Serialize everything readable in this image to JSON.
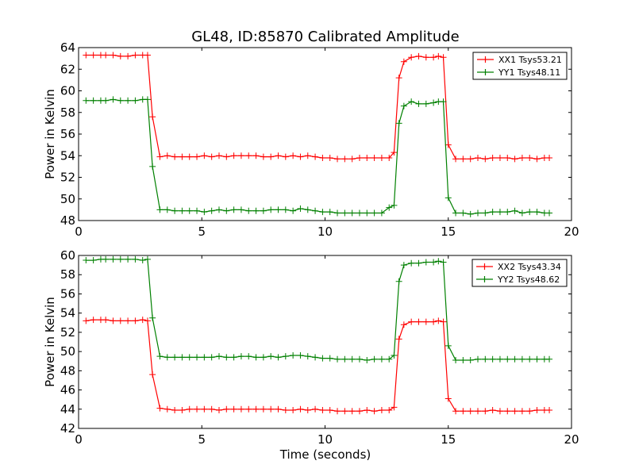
{
  "figure": {
    "title": "GL48, ID:85870 Calibrated Amplitude",
    "xlabel": "Time (seconds)"
  },
  "chart_data": [
    {
      "type": "line",
      "ylabel": "Power in Kelvin",
      "xlabel": "",
      "xlim": [
        0,
        20
      ],
      "ylim": [
        48,
        64
      ],
      "xticks": [
        0,
        5,
        10,
        15,
        20
      ],
      "yticks": [
        48,
        50,
        52,
        54,
        56,
        58,
        60,
        62,
        64
      ],
      "grid": false,
      "legend_position": "top-right",
      "x": [
        0.3,
        0.6,
        0.9,
        1.1,
        1.4,
        1.7,
        2.0,
        2.3,
        2.6,
        2.8,
        3.0,
        3.3,
        3.6,
        3.9,
        4.2,
        4.5,
        4.8,
        5.1,
        5.4,
        5.7,
        6.0,
        6.3,
        6.6,
        6.9,
        7.2,
        7.5,
        7.8,
        8.1,
        8.4,
        8.7,
        9.0,
        9.3,
        9.6,
        9.9,
        10.2,
        10.5,
        10.8,
        11.1,
        11.4,
        11.7,
        12.0,
        12.3,
        12.6,
        12.8,
        13.0,
        13.2,
        13.5,
        13.8,
        14.1,
        14.4,
        14.6,
        14.8,
        15.0,
        15.3,
        15.6,
        15.9,
        16.2,
        16.5,
        16.8,
        17.1,
        17.4,
        17.7,
        18.0,
        18.3,
        18.6,
        18.9,
        19.1
      ],
      "series": [
        {
          "name": "XX1 Tsys53.21",
          "color": "#ff0000",
          "values": [
            63.3,
            63.3,
            63.3,
            63.3,
            63.3,
            63.2,
            63.2,
            63.3,
            63.3,
            63.3,
            57.6,
            53.9,
            54.0,
            53.9,
            53.9,
            53.9,
            53.9,
            54.0,
            53.9,
            54.0,
            53.9,
            54.0,
            54.0,
            54.0,
            54.0,
            53.9,
            53.9,
            54.0,
            53.9,
            54.0,
            53.9,
            54.0,
            53.9,
            53.8,
            53.8,
            53.7,
            53.7,
            53.7,
            53.8,
            53.8,
            53.8,
            53.8,
            53.8,
            54.3,
            61.2,
            62.7,
            63.1,
            63.2,
            63.1,
            63.1,
            63.2,
            63.1,
            55.0,
            53.7,
            53.7,
            53.7,
            53.8,
            53.7,
            53.8,
            53.8,
            53.8,
            53.7,
            53.8,
            53.8,
            53.7,
            53.8,
            53.8
          ]
        },
        {
          "name": "YY1 Tsys48.11",
          "color": "#008000",
          "values": [
            59.1,
            59.1,
            59.1,
            59.1,
            59.2,
            59.1,
            59.1,
            59.1,
            59.2,
            59.2,
            53.0,
            49.0,
            49.0,
            48.9,
            48.9,
            48.9,
            48.9,
            48.8,
            48.9,
            49.0,
            48.9,
            49.0,
            49.0,
            48.9,
            48.9,
            48.9,
            49.0,
            49.0,
            49.0,
            48.9,
            49.1,
            49.0,
            48.9,
            48.8,
            48.8,
            48.7,
            48.7,
            48.7,
            48.7,
            48.7,
            48.7,
            48.7,
            49.2,
            49.4,
            57.0,
            58.6,
            59.0,
            58.8,
            58.8,
            58.9,
            59.0,
            59.0,
            50.1,
            48.7,
            48.7,
            48.6,
            48.7,
            48.7,
            48.8,
            48.8,
            48.8,
            48.9,
            48.7,
            48.8,
            48.8,
            48.7,
            48.7
          ]
        }
      ]
    },
    {
      "type": "line",
      "ylabel": "Power in Kelvin",
      "xlabel": "Time (seconds)",
      "xlim": [
        0,
        20
      ],
      "ylim": [
        42,
        60
      ],
      "xticks": [
        0,
        5,
        10,
        15,
        20
      ],
      "yticks": [
        42,
        44,
        46,
        48,
        50,
        52,
        54,
        56,
        58,
        60
      ],
      "grid": false,
      "legend_position": "top-right",
      "x": [
        0.3,
        0.6,
        0.9,
        1.1,
        1.4,
        1.7,
        2.0,
        2.3,
        2.6,
        2.8,
        3.0,
        3.3,
        3.6,
        3.9,
        4.2,
        4.5,
        4.8,
        5.1,
        5.4,
        5.7,
        6.0,
        6.3,
        6.6,
        6.9,
        7.2,
        7.5,
        7.8,
        8.1,
        8.4,
        8.7,
        9.0,
        9.3,
        9.6,
        9.9,
        10.2,
        10.5,
        10.8,
        11.1,
        11.4,
        11.7,
        12.0,
        12.3,
        12.6,
        12.8,
        13.0,
        13.2,
        13.5,
        13.8,
        14.1,
        14.4,
        14.6,
        14.8,
        15.0,
        15.3,
        15.6,
        15.9,
        16.2,
        16.5,
        16.8,
        17.1,
        17.4,
        17.7,
        18.0,
        18.3,
        18.6,
        18.9,
        19.1
      ],
      "series": [
        {
          "name": "XX2 Tsys43.34",
          "color": "#ff0000",
          "values": [
            53.2,
            53.3,
            53.3,
            53.3,
            53.2,
            53.2,
            53.2,
            53.2,
            53.3,
            53.2,
            47.6,
            44.1,
            44.0,
            43.9,
            43.9,
            44.0,
            44.0,
            44.0,
            44.0,
            43.9,
            44.0,
            44.0,
            44.0,
            44.0,
            44.0,
            44.0,
            44.0,
            44.0,
            43.9,
            43.9,
            44.0,
            43.9,
            44.0,
            43.9,
            43.9,
            43.8,
            43.8,
            43.8,
            43.8,
            43.9,
            43.8,
            43.9,
            43.9,
            44.2,
            51.3,
            52.8,
            53.1,
            53.1,
            53.1,
            53.1,
            53.2,
            53.1,
            45.1,
            43.8,
            43.8,
            43.8,
            43.8,
            43.8,
            43.9,
            43.8,
            43.8,
            43.8,
            43.8,
            43.8,
            43.9,
            43.9,
            43.9
          ]
        },
        {
          "name": "YY2 Tsys48.62",
          "color": "#008000",
          "values": [
            59.5,
            59.5,
            59.6,
            59.6,
            59.6,
            59.6,
            59.6,
            59.6,
            59.5,
            59.6,
            53.5,
            49.5,
            49.4,
            49.4,
            49.4,
            49.4,
            49.4,
            49.4,
            49.4,
            49.5,
            49.4,
            49.4,
            49.5,
            49.5,
            49.4,
            49.4,
            49.5,
            49.4,
            49.5,
            49.6,
            49.6,
            49.5,
            49.4,
            49.3,
            49.3,
            49.2,
            49.2,
            49.2,
            49.2,
            49.1,
            49.2,
            49.2,
            49.2,
            49.6,
            57.3,
            59.0,
            59.2,
            59.2,
            59.3,
            59.3,
            59.4,
            59.3,
            50.6,
            49.1,
            49.1,
            49.1,
            49.2,
            49.2,
            49.2,
            49.2,
            49.2,
            49.2,
            49.2,
            49.2,
            49.2,
            49.2,
            49.2
          ]
        }
      ]
    }
  ]
}
